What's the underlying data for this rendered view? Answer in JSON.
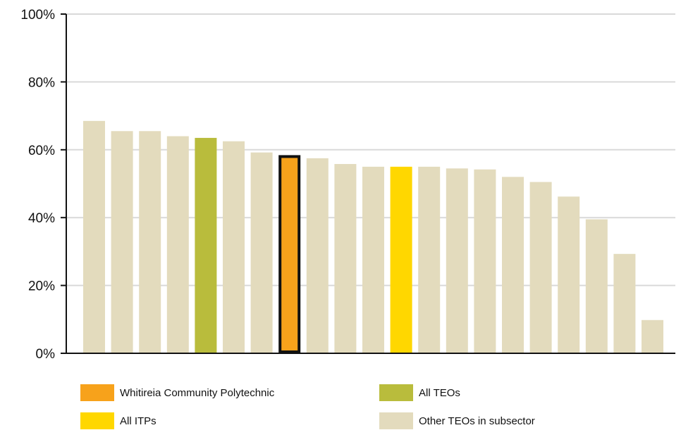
{
  "chart_data": {
    "type": "bar",
    "title": "",
    "xlabel": "",
    "ylabel": "",
    "ylim": [
      0,
      100
    ],
    "yticks": [
      "0%",
      "20%",
      "40%",
      "60%",
      "80%",
      "100%"
    ],
    "grid": true,
    "legend_placement": "bottom",
    "values": [
      68.5,
      65.5,
      65.5,
      64,
      63.5,
      62.5,
      59.2,
      58,
      57.5,
      55.8,
      55,
      55,
      55,
      54.5,
      54.2,
      52,
      50.5,
      46.2,
      39.5,
      29.3,
      9.8
    ],
    "bar_groups": [
      "other",
      "other",
      "other",
      "other",
      "all_teos",
      "other",
      "other",
      "whitireia",
      "other",
      "other",
      "other",
      "all_itps",
      "other",
      "other",
      "other",
      "other",
      "other",
      "other",
      "other",
      "other",
      "other"
    ],
    "legend": [
      {
        "key": "whitireia",
        "label": "Whitireia Community Polytechnic",
        "color": "#f7a21b"
      },
      {
        "key": "all_teos",
        "label": "All TEOs",
        "color": "#b9bc3c"
      },
      {
        "key": "all_itps",
        "label": "All ITPs",
        "color": "#ffd700"
      },
      {
        "key": "other",
        "label": "Other TEOs in subsector",
        "color": "#e3dbbd"
      }
    ]
  }
}
